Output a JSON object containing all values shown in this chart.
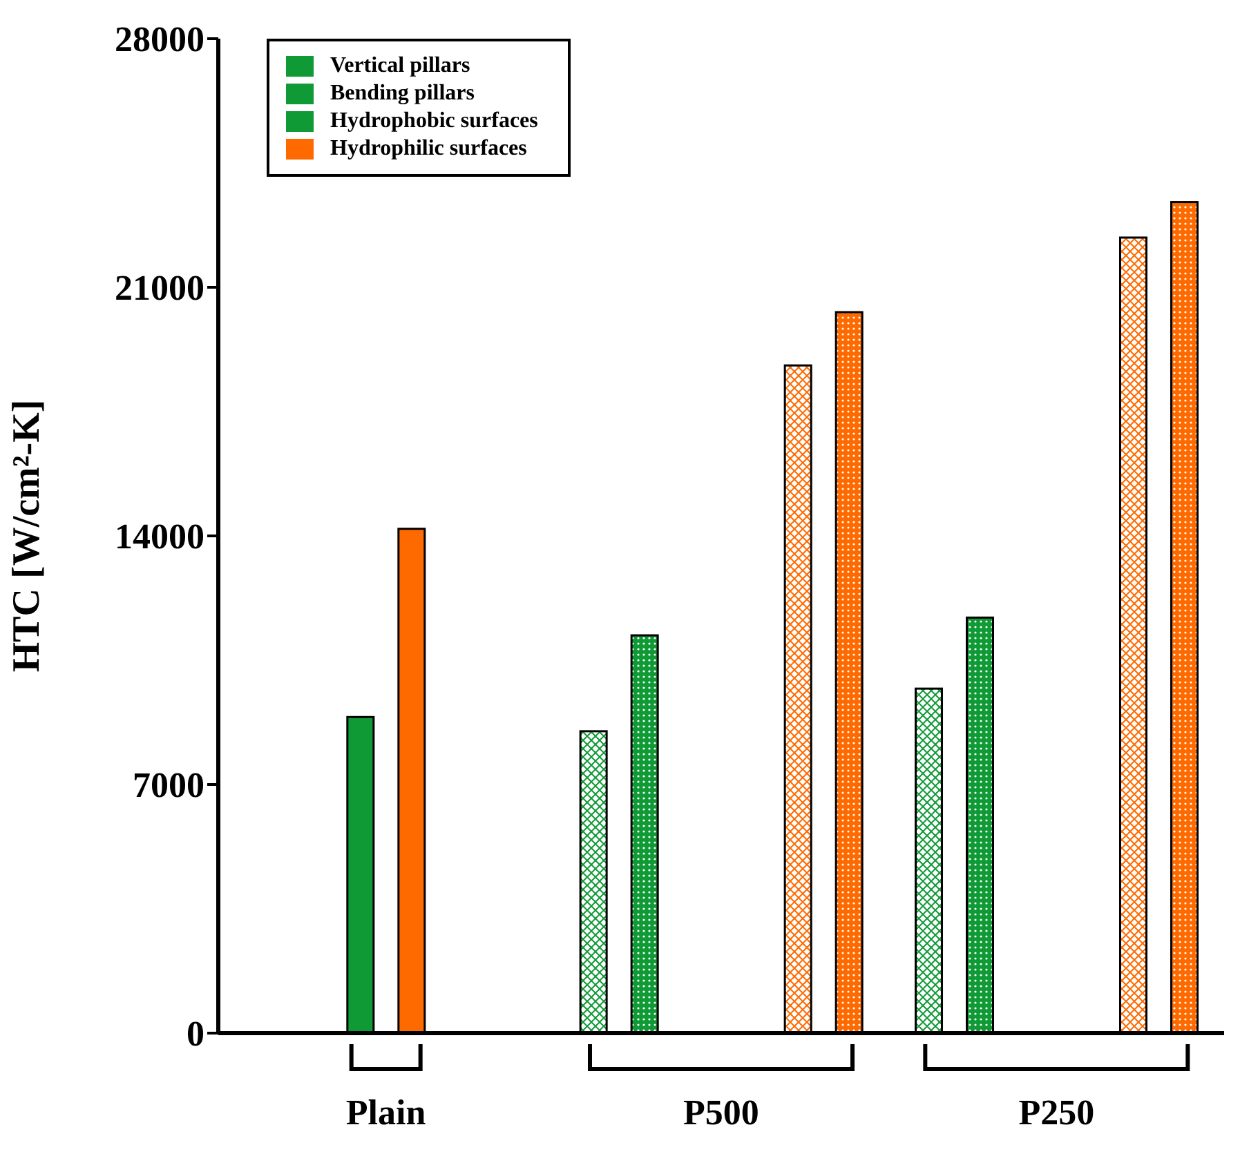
{
  "chart_data": {
    "type": "bar",
    "ylabel": "HTC [W/cm²-K]",
    "categories": [
      "Plain",
      "P500",
      "P250"
    ],
    "series": [
      {
        "name": "Vertical pillars",
        "color": "#109a36",
        "values": [
          null,
          8500,
          9700
        ]
      },
      {
        "name": "Bending pillars",
        "color": "#109a36",
        "values": [
          null,
          11200,
          11700
        ]
      },
      {
        "name": "Hydrophobic surfaces",
        "color": "#109a36",
        "values": [
          8900,
          null,
          null
        ]
      },
      {
        "name": "Hydrophilic surfaces",
        "color": "#ff6a00",
        "values": [
          14200,
          null,
          null
        ]
      },
      {
        "color": "#ff6a00",
        "values": [
          null,
          18800,
          22400
        ]
      },
      {
        "color": "#ff6a00",
        "values": [
          null,
          20300,
          23400
        ]
      }
    ],
    "ylim": [
      0,
      28000
    ],
    "yticks": [
      0,
      7000,
      14000,
      21000,
      28000
    ],
    "grid": false,
    "legend": "top left"
  }
}
